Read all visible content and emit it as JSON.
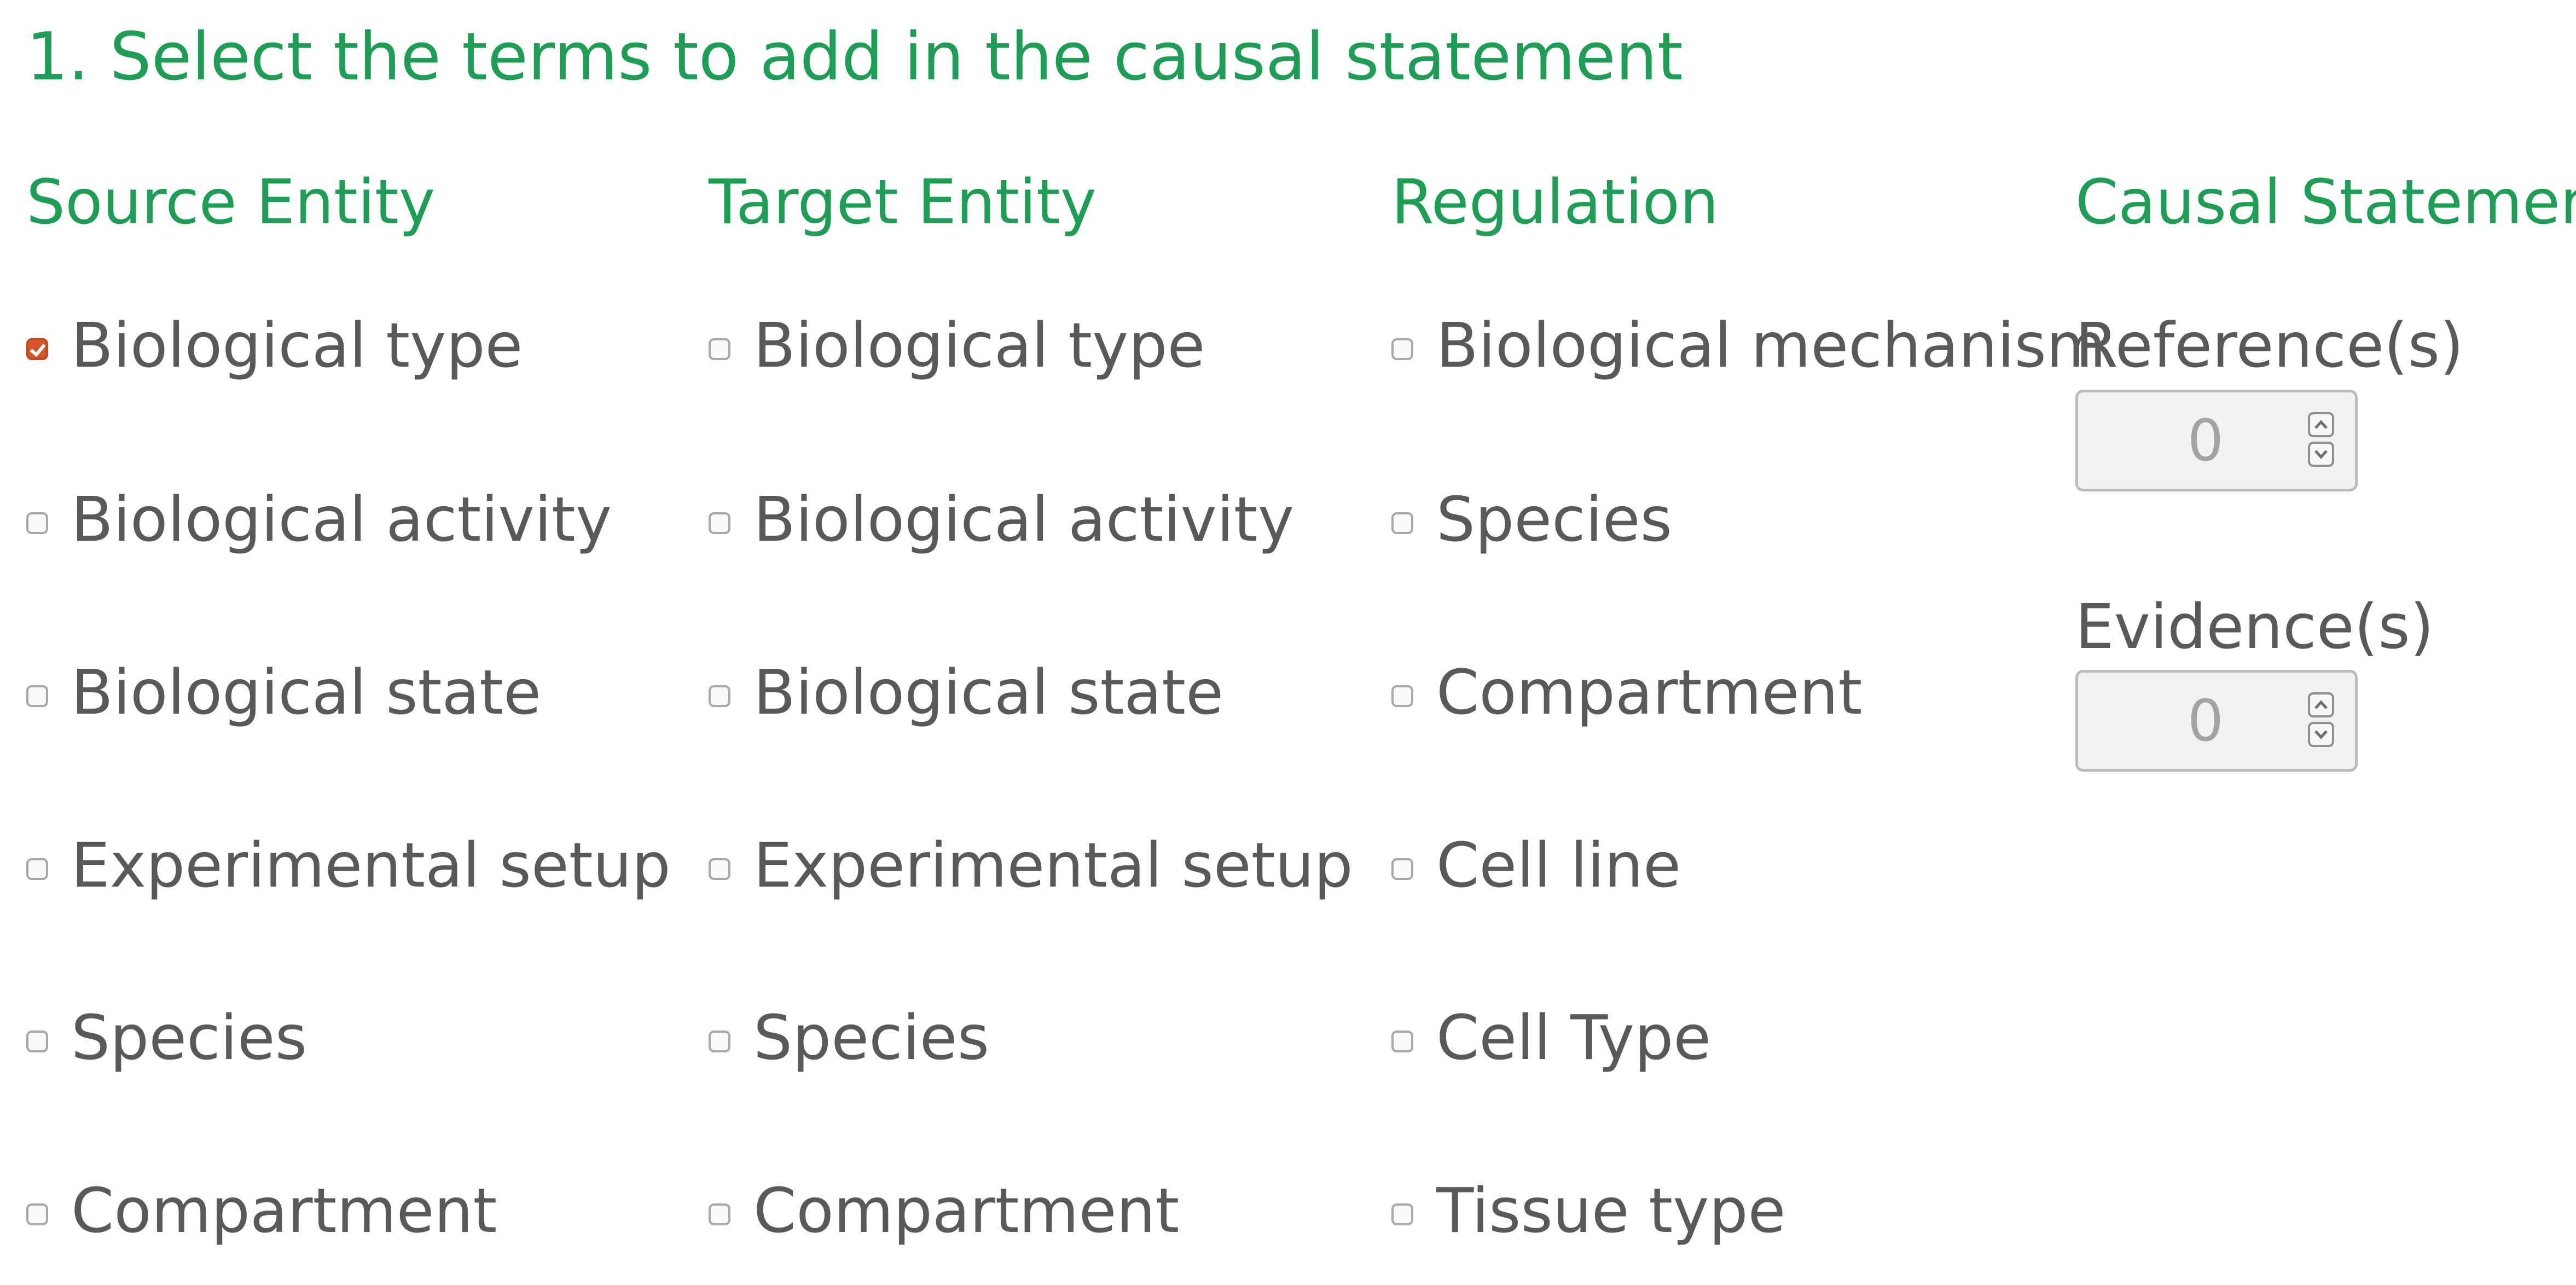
{
  "page_title": "1. Select the terms to add in the causal statement",
  "columns": {
    "source": {
      "header": "Source Entity",
      "options": [
        {
          "label": "Biological type",
          "checked": true
        },
        {
          "label": "Biological activity",
          "checked": false
        },
        {
          "label": "Biological state",
          "checked": false
        },
        {
          "label": "Experimental setup",
          "checked": false
        },
        {
          "label": "Species",
          "checked": false
        },
        {
          "label": "Compartment",
          "checked": false
        }
      ]
    },
    "target": {
      "header": "Target Entity",
      "options": [
        {
          "label": "Biological type",
          "checked": false
        },
        {
          "label": "Biological activity",
          "checked": false
        },
        {
          "label": "Biological state",
          "checked": false
        },
        {
          "label": "Experimental setup",
          "checked": false
        },
        {
          "label": "Species",
          "checked": false
        },
        {
          "label": "Compartment",
          "checked": false
        }
      ]
    },
    "regulation": {
      "header": "Regulation",
      "options": [
        {
          "label": "Biological mechanism",
          "checked": false
        },
        {
          "label": "Species",
          "checked": false
        },
        {
          "label": "Compartment",
          "checked": false
        },
        {
          "label": "Cell line",
          "checked": false
        },
        {
          "label": "Cell Type",
          "checked": false
        },
        {
          "label": "Tissue type",
          "checked": false
        }
      ]
    },
    "causal": {
      "header": "Causal Statement",
      "references": {
        "label": "Reference(s)",
        "value": "0"
      },
      "evidences": {
        "label": "Evidence(s)",
        "value": "0"
      }
    }
  },
  "colors": {
    "accent_green": "#1e9e55",
    "checkbox_checked": "#d4572a",
    "text": "#595959"
  }
}
